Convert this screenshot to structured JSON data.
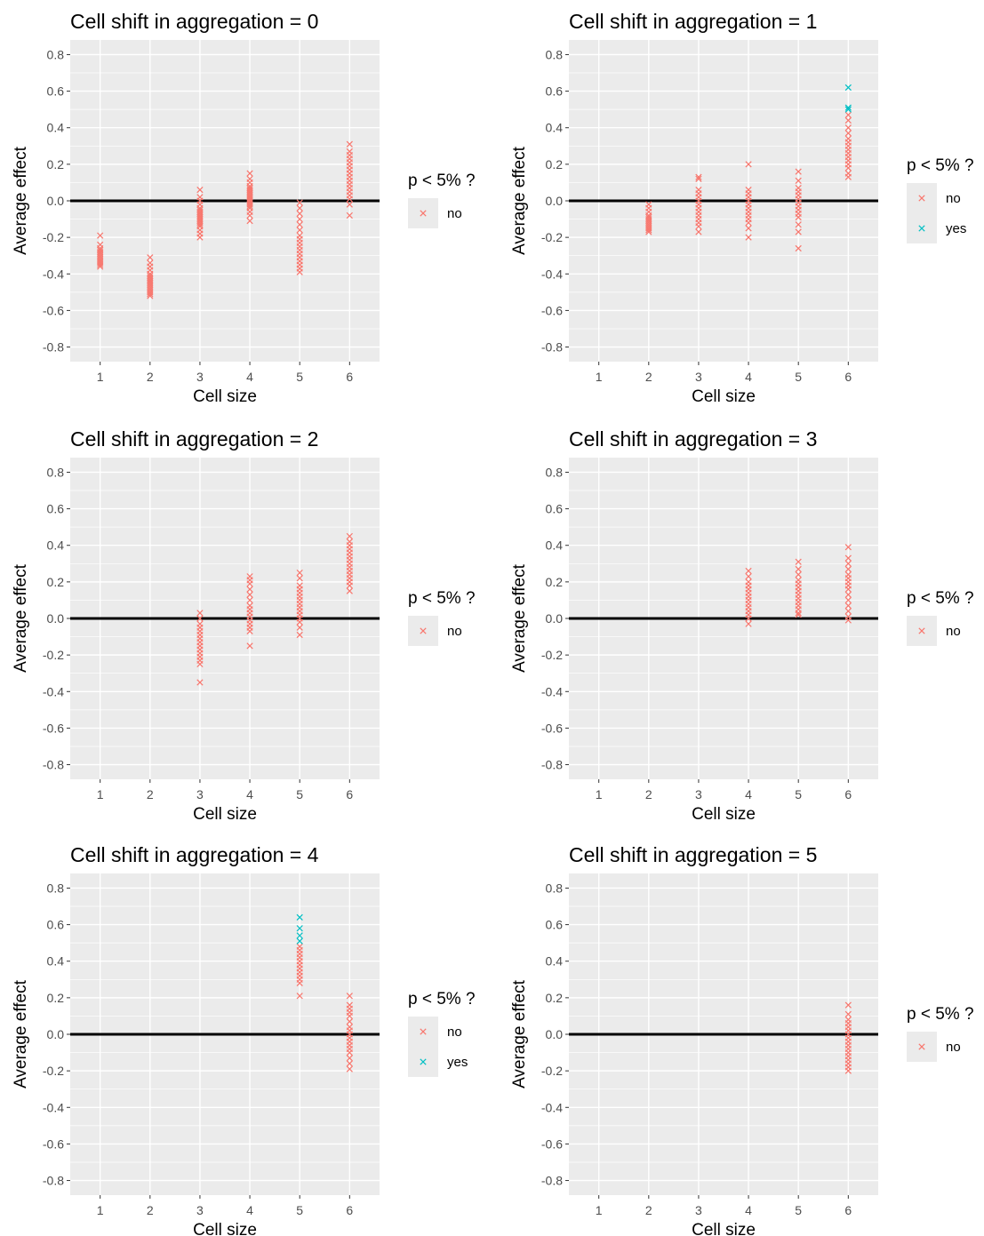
{
  "legend": {
    "title": "p < 5% ?",
    "levels": [
      "no",
      "yes"
    ],
    "colors": {
      "no": "#F8766D",
      "yes": "#00BFC4"
    }
  },
  "chart_data": [
    {
      "type": "scatter",
      "title": "Cell shift in aggregation = 0",
      "xlabel": "Cell size",
      "ylabel": "Average effect",
      "x_ticks": [
        "1",
        "2",
        "3",
        "4",
        "5",
        "6"
      ],
      "y_ticks": [
        "0.8",
        "0.6",
        "0.4",
        "0.2",
        "0.0",
        "-0.2",
        "-0.4",
        "-0.6",
        "-0.8"
      ],
      "xlim": [
        0.4,
        6.6
      ],
      "ylim": [
        -0.88,
        0.88
      ],
      "reference_line_y": 0,
      "legend_levels": [
        "no"
      ],
      "series": [
        {
          "x": 1,
          "sig": "no",
          "values": [
            -0.19,
            -0.24,
            -0.26,
            -0.27,
            -0.28,
            -0.29,
            -0.3,
            -0.31,
            -0.32,
            -0.33,
            -0.34,
            -0.35,
            -0.36
          ]
        },
        {
          "x": 2,
          "sig": "no",
          "values": [
            -0.31,
            -0.34,
            -0.36,
            -0.38,
            -0.4,
            -0.41,
            -0.42,
            -0.43,
            -0.44,
            -0.45,
            -0.46,
            -0.47,
            -0.48,
            -0.49,
            -0.5,
            -0.51,
            -0.52
          ]
        },
        {
          "x": 3,
          "sig": "no",
          "values": [
            0.06,
            0.02,
            0.0,
            -0.02,
            -0.04,
            -0.05,
            -0.06,
            -0.07,
            -0.08,
            -0.09,
            -0.1,
            -0.11,
            -0.12,
            -0.13,
            -0.14,
            -0.16,
            -0.18,
            -0.2
          ]
        },
        {
          "x": 4,
          "sig": "no",
          "values": [
            0.15,
            0.12,
            0.1,
            0.08,
            0.07,
            0.06,
            0.05,
            0.04,
            0.03,
            0.02,
            0.01,
            0.0,
            -0.01,
            -0.02,
            -0.03,
            -0.04,
            -0.06,
            -0.08,
            -0.11
          ]
        },
        {
          "x": 5,
          "sig": "no",
          "values": [
            -0.01,
            -0.04,
            -0.07,
            -0.1,
            -0.13,
            -0.16,
            -0.19,
            -0.21,
            -0.23,
            -0.25,
            -0.27,
            -0.29,
            -0.31,
            -0.33,
            -0.35,
            -0.37,
            -0.39
          ]
        },
        {
          "x": 6,
          "sig": "no",
          "values": [
            0.31,
            0.27,
            0.25,
            0.23,
            0.21,
            0.19,
            0.17,
            0.15,
            0.13,
            0.11,
            0.09,
            0.07,
            0.05,
            0.03,
            0.01,
            -0.02,
            -0.08
          ]
        }
      ]
    },
    {
      "type": "scatter",
      "title": "Cell shift in aggregation = 1",
      "xlabel": "Cell size",
      "ylabel": "Average effect",
      "x_ticks": [
        "1",
        "2",
        "3",
        "4",
        "5",
        "6"
      ],
      "y_ticks": [
        "0.8",
        "0.6",
        "0.4",
        "0.2",
        "0.0",
        "-0.2",
        "-0.4",
        "-0.6",
        "-0.8"
      ],
      "xlim": [
        0.4,
        6.6
      ],
      "ylim": [
        -0.88,
        0.88
      ],
      "reference_line_y": 0,
      "legend_levels": [
        "no",
        "yes"
      ],
      "series": [
        {
          "x": 2,
          "sig": "no",
          "values": [
            -0.02,
            -0.04,
            -0.06,
            -0.08,
            -0.09,
            -0.1,
            -0.11,
            -0.12,
            -0.13,
            -0.14,
            -0.15,
            -0.16,
            -0.17
          ]
        },
        {
          "x": 3,
          "sig": "no",
          "values": [
            0.13,
            0.12,
            0.06,
            0.04,
            0.02,
            0.0,
            -0.02,
            -0.04,
            -0.06,
            -0.08,
            -0.1,
            -0.12,
            -0.14,
            -0.17
          ]
        },
        {
          "x": 4,
          "sig": "no",
          "values": [
            0.2,
            0.06,
            0.04,
            0.02,
            0.0,
            -0.02,
            -0.04,
            -0.06,
            -0.08,
            -0.1,
            -0.12,
            -0.15,
            -0.2
          ]
        },
        {
          "x": 5,
          "sig": "no",
          "values": [
            0.16,
            0.11,
            0.07,
            0.05,
            0.03,
            0.01,
            -0.01,
            -0.03,
            -0.05,
            -0.07,
            -0.09,
            -0.13,
            -0.17,
            -0.26
          ]
        },
        {
          "x": 6,
          "sig": "no",
          "values": [
            0.47,
            0.44,
            0.4,
            0.37,
            0.34,
            0.32,
            0.3,
            0.28,
            0.26,
            0.24,
            0.22,
            0.2,
            0.18,
            0.15,
            0.13
          ]
        },
        {
          "x": 6,
          "sig": "yes",
          "values": [
            0.62,
            0.51,
            0.5
          ]
        }
      ]
    },
    {
      "type": "scatter",
      "title": "Cell shift in aggregation = 2",
      "xlabel": "Cell size",
      "ylabel": "Average effect",
      "x_ticks": [
        "1",
        "2",
        "3",
        "4",
        "5",
        "6"
      ],
      "y_ticks": [
        "0.8",
        "0.6",
        "0.4",
        "0.2",
        "0.0",
        "-0.2",
        "-0.4",
        "-0.6",
        "-0.8"
      ],
      "xlim": [
        0.4,
        6.6
      ],
      "ylim": [
        -0.88,
        0.88
      ],
      "reference_line_y": 0,
      "legend_levels": [
        "no"
      ],
      "series": [
        {
          "x": 3,
          "sig": "no",
          "values": [
            0.03,
            0.0,
            -0.03,
            -0.05,
            -0.07,
            -0.09,
            -0.11,
            -0.13,
            -0.15,
            -0.17,
            -0.19,
            -0.21,
            -0.23,
            -0.25,
            -0.35
          ]
        },
        {
          "x": 4,
          "sig": "no",
          "values": [
            0.23,
            0.21,
            0.19,
            0.16,
            0.13,
            0.1,
            0.07,
            0.05,
            0.03,
            0.01,
            -0.01,
            -0.03,
            -0.05,
            -0.07,
            -0.15
          ]
        },
        {
          "x": 5,
          "sig": "no",
          "values": [
            0.25,
            0.22,
            0.18,
            0.16,
            0.14,
            0.12,
            0.1,
            0.08,
            0.06,
            0.04,
            0.02,
            0.0,
            -0.02,
            -0.05,
            -0.09
          ]
        },
        {
          "x": 6,
          "sig": "no",
          "values": [
            0.45,
            0.42,
            0.4,
            0.38,
            0.36,
            0.34,
            0.32,
            0.3,
            0.28,
            0.26,
            0.24,
            0.22,
            0.2,
            0.18,
            0.15
          ]
        }
      ]
    },
    {
      "type": "scatter",
      "title": "Cell shift in aggregation = 3",
      "xlabel": "Cell size",
      "ylabel": "Average effect",
      "x_ticks": [
        "1",
        "2",
        "3",
        "4",
        "5",
        "6"
      ],
      "y_ticks": [
        "0.8",
        "0.6",
        "0.4",
        "0.2",
        "0.0",
        "-0.2",
        "-0.4",
        "-0.6",
        "-0.8"
      ],
      "xlim": [
        0.4,
        6.6
      ],
      "ylim": [
        -0.88,
        0.88
      ],
      "reference_line_y": 0,
      "legend_levels": [
        "no"
      ],
      "series": [
        {
          "x": 4,
          "sig": "no",
          "values": [
            0.26,
            0.23,
            0.2,
            0.18,
            0.16,
            0.14,
            0.12,
            0.1,
            0.08,
            0.06,
            0.04,
            0.02,
            0.0,
            -0.03
          ]
        },
        {
          "x": 5,
          "sig": "no",
          "values": [
            0.31,
            0.27,
            0.24,
            0.21,
            0.19,
            0.17,
            0.15,
            0.13,
            0.11,
            0.09,
            0.07,
            0.05,
            0.03,
            0.02
          ]
        },
        {
          "x": 6,
          "sig": "no",
          "values": [
            0.39,
            0.33,
            0.3,
            0.27,
            0.24,
            0.22,
            0.2,
            0.18,
            0.16,
            0.13,
            0.1,
            0.07,
            0.04,
            0.01,
            -0.01
          ]
        }
      ]
    },
    {
      "type": "scatter",
      "title": "Cell shift in aggregation = 4",
      "xlabel": "Cell size",
      "ylabel": "Average effect",
      "x_ticks": [
        "1",
        "2",
        "3",
        "4",
        "5",
        "6"
      ],
      "y_ticks": [
        "0.8",
        "0.6",
        "0.4",
        "0.2",
        "0.0",
        "-0.2",
        "-0.4",
        "-0.6",
        "-0.8"
      ],
      "xlim": [
        0.4,
        6.6
      ],
      "ylim": [
        -0.88,
        0.88
      ],
      "reference_line_y": 0,
      "legend_levels": [
        "no",
        "yes"
      ],
      "series": [
        {
          "x": 5,
          "sig": "no",
          "values": [
            0.48,
            0.46,
            0.44,
            0.42,
            0.4,
            0.38,
            0.36,
            0.34,
            0.32,
            0.3,
            0.28,
            0.21
          ]
        },
        {
          "x": 5,
          "sig": "yes",
          "values": [
            0.64,
            0.58,
            0.54,
            0.51
          ]
        },
        {
          "x": 6,
          "sig": "no",
          "values": [
            0.21,
            0.16,
            0.14,
            0.12,
            0.1,
            0.07,
            0.04,
            0.02,
            0.0,
            -0.02,
            -0.04,
            -0.06,
            -0.08,
            -0.1,
            -0.13,
            -0.16,
            -0.19
          ]
        }
      ]
    },
    {
      "type": "scatter",
      "title": "Cell shift in aggregation = 5",
      "xlabel": "Cell size",
      "ylabel": "Average effect",
      "x_ticks": [
        "1",
        "2",
        "3",
        "4",
        "5",
        "6"
      ],
      "y_ticks": [
        "0.8",
        "0.6",
        "0.4",
        "0.2",
        "0.0",
        "-0.2",
        "-0.4",
        "-0.6",
        "-0.8"
      ],
      "xlim": [
        0.4,
        6.6
      ],
      "ylim": [
        -0.88,
        0.88
      ],
      "reference_line_y": 0,
      "legend_levels": [
        "no"
      ],
      "series": [
        {
          "x": 6,
          "sig": "no",
          "values": [
            0.16,
            0.11,
            0.08,
            0.06,
            0.04,
            0.02,
            0.0,
            -0.02,
            -0.04,
            -0.06,
            -0.08,
            -0.1,
            -0.12,
            -0.14,
            -0.16,
            -0.18,
            -0.2
          ]
        }
      ]
    }
  ]
}
